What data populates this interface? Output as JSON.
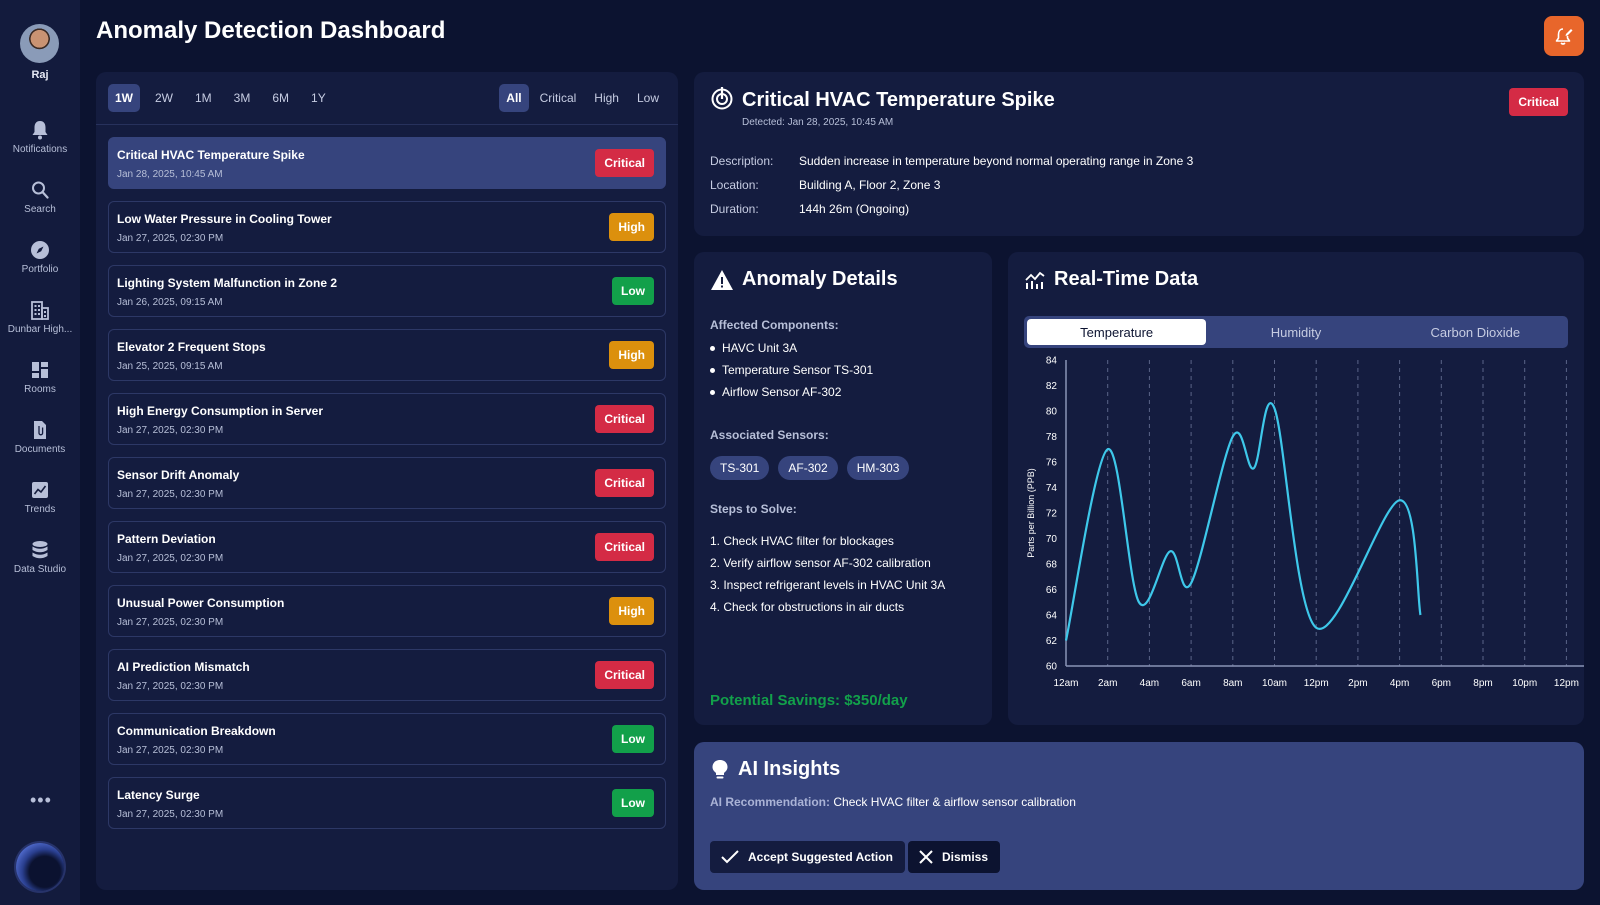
{
  "user": {
    "name": "Raj"
  },
  "page_title": "Anomaly Detection Dashboard",
  "sidebar": {
    "items": [
      {
        "label": "Notifications",
        "icon": "bell-icon"
      },
      {
        "label": "Search",
        "icon": "search-icon"
      },
      {
        "label": "Portfolio",
        "icon": "compass-icon"
      },
      {
        "label": "Dunbar High...",
        "icon": "building-icon"
      },
      {
        "label": "Rooms",
        "icon": "grid-icon"
      },
      {
        "label": "Documents",
        "icon": "document-icon"
      },
      {
        "label": "Trends",
        "icon": "trend-chart-icon"
      },
      {
        "label": "Data Studio",
        "icon": "database-icon"
      }
    ],
    "more_label": "•••"
  },
  "range_tabs": [
    "1W",
    "2W",
    "1M",
    "3M",
    "6M",
    "1Y"
  ],
  "range_selected": "1W",
  "filter_tabs": [
    "All",
    "Critical",
    "High",
    "Low"
  ],
  "filter_selected": "All",
  "anomalies": [
    {
      "title": "Critical HVAC Temperature Spike",
      "date": "Jan 28, 2025, 10:45 AM",
      "severity": "Critical"
    },
    {
      "title": "Low Water Pressure in Cooling Tower",
      "date": "Jan 27, 2025, 02:30 PM",
      "severity": "High"
    },
    {
      "title": "Lighting System Malfunction in Zone 2",
      "date": "Jan 26, 2025, 09:15 AM",
      "severity": "Low"
    },
    {
      "title": "Elevator 2 Frequent Stops",
      "date": "Jan 25, 2025, 09:15 AM",
      "severity": "High"
    },
    {
      "title": "High Energy Consumption in Server",
      "date": "Jan 27, 2025, 02:30 PM",
      "severity": "Critical"
    },
    {
      "title": "Sensor Drift Anomaly",
      "date": "Jan 27, 2025, 02:30 PM",
      "severity": "Critical"
    },
    {
      "title": "Pattern Deviation",
      "date": "Jan 27, 2025, 02:30 PM",
      "severity": "Critical"
    },
    {
      "title": "Unusual Power Consumption",
      "date": "Jan 27, 2025, 02:30 PM",
      "severity": "High"
    },
    {
      "title": "AI Prediction Mismatch",
      "date": "Jan 27, 2025, 02:30 PM",
      "severity": "Critical"
    },
    {
      "title": "Communication Breakdown",
      "date": "Jan 27, 2025, 02:30 PM",
      "severity": "Low"
    },
    {
      "title": "Latency Surge",
      "date": "Jan 27, 2025, 02:30 PM",
      "severity": "Low"
    }
  ],
  "selected_anomaly_index": 0,
  "detail": {
    "title": "Critical HVAC Temperature Spike",
    "detected": "Detected: Jan 28, 2025, 10:45 AM",
    "severity": "Critical",
    "description_label": "Description:",
    "description": "Sudden increase in temperature beyond normal operating range in Zone 3",
    "location_label": "Location:",
    "location": "Building A, Floor 2, Zone 3",
    "duration_label": "Duration:",
    "duration": "144h 26m (Ongoing)"
  },
  "anomaly_details": {
    "title": "Anomaly Details",
    "components_label": "Affected Components:",
    "components": [
      "HAVC Unit 3A",
      "Temperature Sensor TS-301",
      "Airflow Sensor AF-302"
    ],
    "sensors_label": "Associated Sensors:",
    "sensors": [
      "TS-301",
      "AF-302",
      "HM-303"
    ],
    "steps_label": "Steps to Solve:",
    "steps": [
      "1. Check HVAC filter for blockages",
      "2. Verify airflow sensor AF-302 calibration",
      "3. Inspect refrigerant levels in HVAC Unit 3A",
      "4. Check for obstructions in air ducts"
    ],
    "savings": "Potential Savings: $350/day"
  },
  "realtime": {
    "title": "Real-Time Data",
    "tabs": [
      "Temperature",
      "Humidity",
      "Carbon Dioxide"
    ],
    "selected_tab": "Temperature"
  },
  "chart_data": {
    "type": "line",
    "title": "",
    "xlabel": "",
    "ylabel": "Parts per Billion (PPB)",
    "x_ticks": [
      "12am",
      "2am",
      "4am",
      "6am",
      "8am",
      "10am",
      "12pm",
      "2pm",
      "4pm",
      "6pm",
      "8pm",
      "10pm",
      "12pm"
    ],
    "y_ticks": [
      60,
      62,
      64,
      66,
      68,
      70,
      72,
      74,
      76,
      78,
      80,
      82,
      84
    ],
    "ylim": [
      60,
      84
    ],
    "grid": "vertical dashed",
    "series": [
      {
        "color": "#3ec8ea",
        "x": [
          0,
          1,
          1.75,
          2.5,
          3,
          4,
          4.5,
          5,
          6,
          8,
          8.5
        ],
        "y": [
          62,
          77,
          65,
          69,
          66.5,
          78,
          75.5,
          80.2,
          63,
          73,
          64
        ]
      }
    ]
  },
  "ai": {
    "title": "AI Insights",
    "rec_label": "AI Recommendation:",
    "rec_text": "Check HVAC filter & airflow sensor calibration",
    "accept_label": "Accept Suggested Action",
    "dismiss_label": "Dismiss"
  },
  "colors": {
    "background": "#0c1330",
    "panel": "#141c3f",
    "accent": "#36447d",
    "critical": "#d42b45",
    "high": "#dc900d",
    "low": "#12a04a",
    "alert_button": "#e8662b",
    "line": "#3ec8ea"
  }
}
